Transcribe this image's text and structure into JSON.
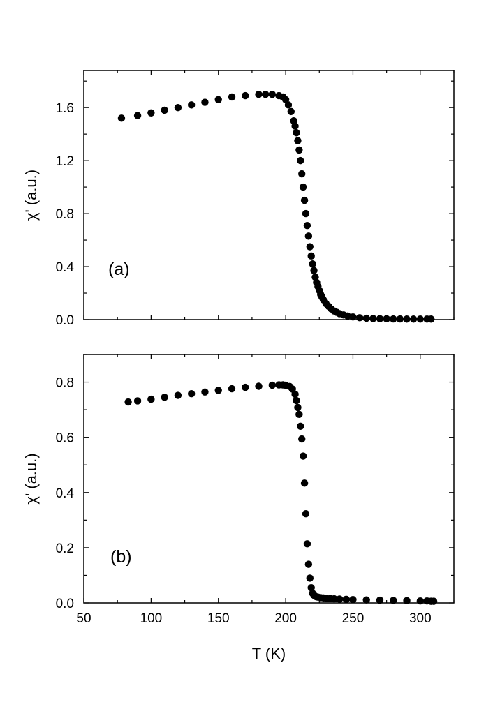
{
  "chart_data": [
    {
      "type": "scatter",
      "panel_label": "(a)",
      "xlabel": "",
      "ylabel": "χ' (a.u.)",
      "xlim": [
        50,
        325
      ],
      "ylim": [
        0,
        1.88
      ],
      "x_ticks": [
        50,
        100,
        150,
        200,
        250,
        300
      ],
      "x_tick_labels": [
        "",
        "",
        "",
        "",
        "",
        ""
      ],
      "y_ticks": [
        0.0,
        0.4,
        0.8,
        1.2,
        1.6
      ],
      "y_tick_labels": [
        "0.0",
        "0.4",
        "0.8",
        "1.2",
        "1.6"
      ],
      "grid": false,
      "marker_color": "#000000",
      "series": [
        {
          "x": [
            78,
            90,
            100,
            110,
            120,
            130,
            140,
            150,
            160,
            170,
            180,
            185,
            190,
            195,
            198,
            200,
            202,
            204,
            206,
            207,
            208,
            209,
            210,
            211,
            212,
            213,
            214,
            215,
            216,
            217,
            218,
            219,
            220,
            221,
            222,
            223,
            224,
            225,
            226,
            227,
            228,
            230,
            232,
            234,
            236,
            238,
            240,
            243,
            246,
            250,
            255,
            260,
            265,
            270,
            275,
            280,
            285,
            290,
            295,
            300,
            305,
            308
          ],
          "y": [
            1.52,
            1.54,
            1.56,
            1.58,
            1.6,
            1.62,
            1.64,
            1.66,
            1.68,
            1.69,
            1.7,
            1.7,
            1.7,
            1.69,
            1.68,
            1.66,
            1.62,
            1.57,
            1.5,
            1.46,
            1.41,
            1.35,
            1.28,
            1.2,
            1.1,
            1.0,
            0.9,
            0.8,
            0.71,
            0.63,
            0.55,
            0.48,
            0.42,
            0.37,
            0.32,
            0.28,
            0.25,
            0.22,
            0.19,
            0.17,
            0.15,
            0.12,
            0.1,
            0.08,
            0.065,
            0.055,
            0.045,
            0.035,
            0.027,
            0.02,
            0.014,
            0.01,
            0.008,
            0.007,
            0.006,
            0.005,
            0.005,
            0.004,
            0.004,
            0.004,
            0.004,
            0.004
          ]
        }
      ]
    },
    {
      "type": "scatter",
      "panel_label": "(b)",
      "xlabel": "T (K)",
      "ylabel": "χ' (a.u.)",
      "xlim": [
        50,
        325
      ],
      "ylim": [
        0,
        0.9
      ],
      "x_ticks": [
        50,
        100,
        150,
        200,
        250,
        300
      ],
      "x_tick_labels": [
        "50",
        "100",
        "150",
        "200",
        "250",
        "300"
      ],
      "y_ticks": [
        0.0,
        0.2,
        0.4,
        0.6,
        0.8
      ],
      "y_tick_labels": [
        "0.0",
        "0.2",
        "0.4",
        "0.6",
        "0.8"
      ],
      "grid": false,
      "marker_color": "#000000",
      "series": [
        {
          "x": [
            83,
            90,
            100,
            110,
            120,
            130,
            140,
            150,
            160,
            170,
            180,
            190,
            195,
            198,
            200,
            203,
            205,
            207,
            208,
            209,
            210,
            211,
            212,
            213,
            214,
            215,
            216,
            217,
            218,
            219,
            220,
            221,
            222,
            223,
            224,
            226,
            228,
            230,
            233,
            236,
            240,
            245,
            250,
            260,
            270,
            280,
            290,
            300,
            305,
            308,
            310
          ],
          "y": [
            0.728,
            0.732,
            0.738,
            0.745,
            0.752,
            0.758,
            0.764,
            0.77,
            0.776,
            0.781,
            0.785,
            0.789,
            0.79,
            0.79,
            0.789,
            0.784,
            0.775,
            0.756,
            0.733,
            0.708,
            0.683,
            0.64,
            0.594,
            0.532,
            0.434,
            0.323,
            0.214,
            0.14,
            0.09,
            0.055,
            0.035,
            0.028,
            0.024,
            0.022,
            0.021,
            0.019,
            0.018,
            0.017,
            0.016,
            0.015,
            0.014,
            0.013,
            0.012,
            0.011,
            0.01,
            0.009,
            0.008,
            0.007,
            0.007,
            0.006,
            0.006
          ]
        }
      ]
    }
  ]
}
